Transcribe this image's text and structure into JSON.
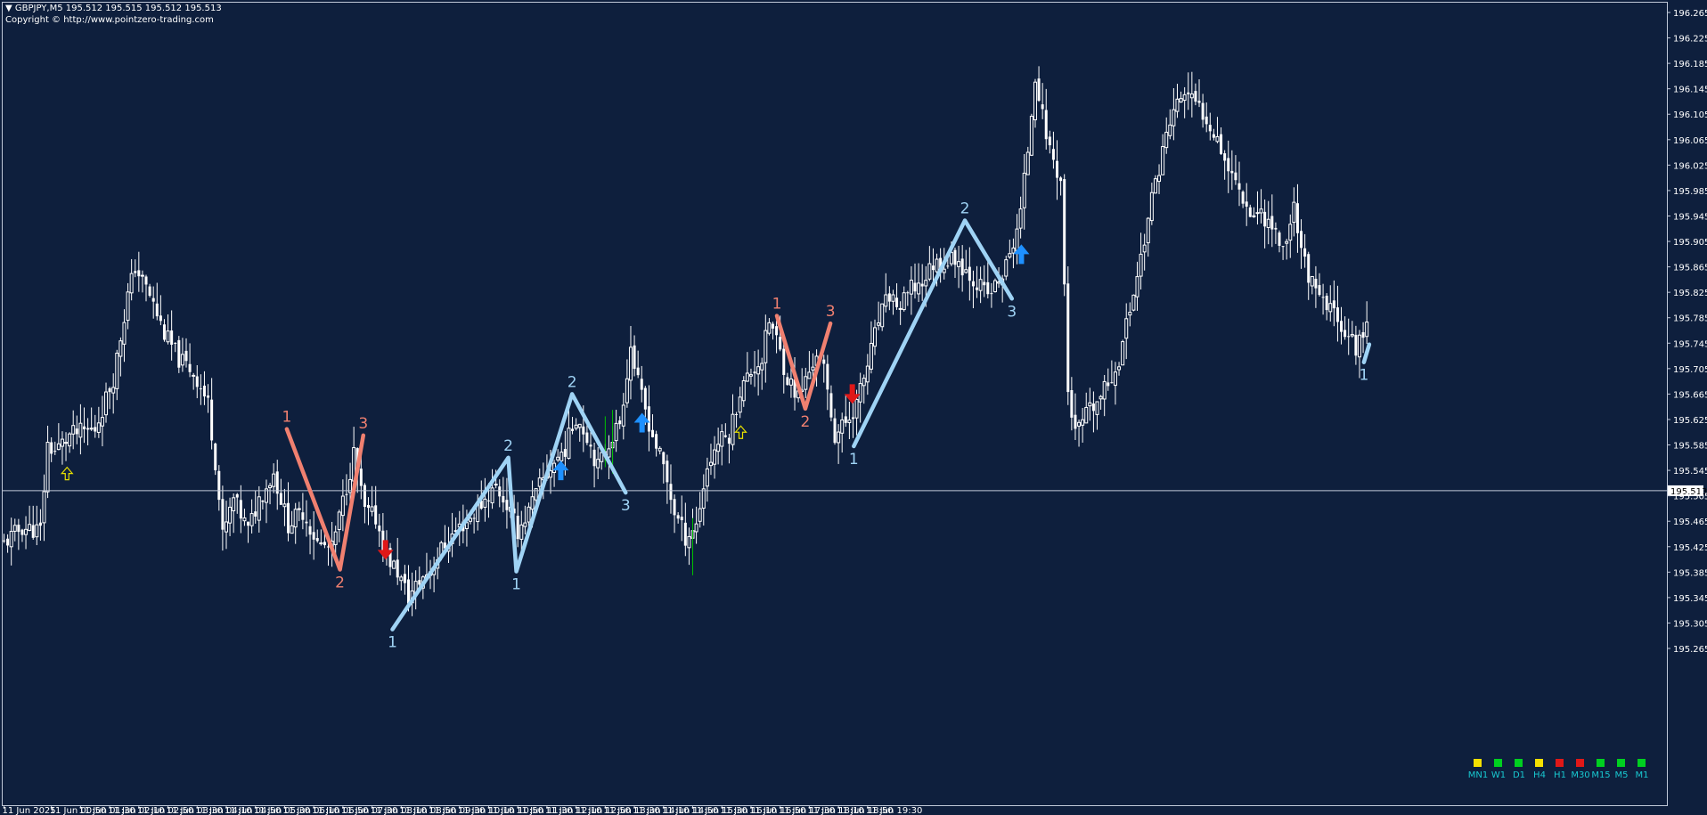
{
  "header": {
    "symbol_line": "GBPJPY,M5  195.512 195.515 195.512 195.513",
    "copyright": "Copyright © http://www.pointzero-trading.com"
  },
  "colors": {
    "background": "#0e1f3d",
    "frame": "#c0c8d8",
    "candle": "#ffffff",
    "bull_wave": "#9fd3f5",
    "bear_wave": "#f08070",
    "buy_arrow": "#1e90ff",
    "sell_arrow": "#e01818",
    "hollow_arrow": "#e8e000",
    "price_line": "#c0c8d8",
    "green_bar": "#00c000"
  },
  "price_line": {
    "value": 195.513,
    "label": "195.513"
  },
  "timeframe_panel": [
    {
      "label": "MN1",
      "color": "#f5e000"
    },
    {
      "label": "W1",
      "color": "#00d020"
    },
    {
      "label": "D1",
      "color": "#00d020"
    },
    {
      "label": "H4",
      "color": "#f5e000"
    },
    {
      "label": "H1",
      "color": "#e01818"
    },
    {
      "label": "M30",
      "color": "#e01818"
    },
    {
      "label": "M15",
      "color": "#00d020"
    },
    {
      "label": "M5",
      "color": "#00d020"
    },
    {
      "label": "M1",
      "color": "#00d020"
    }
  ],
  "chart_data": {
    "type": "candlestick",
    "symbol": "GBPJPY",
    "timeframe": "M5",
    "ylim": [
      195.25,
      196.285
    ],
    "y_ticks": [
      "196.265",
      "196.225",
      "196.185",
      "196.145",
      "196.105",
      "196.065",
      "196.025",
      "195.985",
      "195.945",
      "195.905",
      "195.865",
      "195.825",
      "195.785",
      "195.745",
      "195.705",
      "195.665",
      "195.625",
      "195.585",
      "195.545",
      "195.505",
      "195.465",
      "195.425",
      "195.385",
      "195.345",
      "195.305",
      "195.265"
    ],
    "x_ticks": [
      "11 Jun 2025",
      "11 Jun 00:50",
      "11 Jun 01:30",
      "11 Jun 02:10",
      "11 Jun 02:50",
      "11 Jun 03:30",
      "11 Jun 04:10",
      "11 Jun 04:50",
      "11 Jun 05:30",
      "11 Jun 06:10",
      "11 Jun 06:50",
      "11 Jun 07:30",
      "11 Jun 08:10",
      "11 Jun 08:50",
      "11 Jun 09:30",
      "11 Jun 10:10",
      "11 Jun 10:50",
      "11 Jun 11:30",
      "11 Jun 12:10",
      "11 Jun 12:50",
      "11 Jun 13:30",
      "11 Jun 14:10",
      "11 Jun 14:50",
      "11 Jun 15:30",
      "11 Jun 16:10",
      "11 Jun 16:50",
      "11 Jun 17:30",
      "11 Jun 18:10",
      "11 Jun 18:50",
      "11 Jun 19:30"
    ],
    "close_path": [
      [
        0,
        195.43
      ],
      [
        5,
        195.455
      ],
      [
        10,
        195.45
      ],
      [
        12,
        195.585
      ],
      [
        14,
        195.575
      ],
      [
        18,
        195.6
      ],
      [
        25,
        195.61
      ],
      [
        30,
        195.69
      ],
      [
        34,
        195.82
      ],
      [
        36,
        195.865
      ],
      [
        40,
        195.82
      ],
      [
        44,
        195.76
      ],
      [
        48,
        195.72
      ],
      [
        52,
        195.7
      ],
      [
        56,
        195.65
      ],
      [
        58,
        195.56
      ],
      [
        60,
        195.44
      ],
      [
        63,
        195.5
      ],
      [
        67,
        195.45
      ],
      [
        70,
        195.5
      ],
      [
        74,
        195.54
      ],
      [
        78,
        195.46
      ],
      [
        82,
        195.48
      ],
      [
        86,
        195.43
      ],
      [
        90,
        195.42
      ],
      [
        94,
        195.52
      ],
      [
        96,
        195.57
      ],
      [
        99,
        195.48
      ],
      [
        102,
        195.47
      ],
      [
        105,
        195.41
      ],
      [
        108,
        195.385
      ],
      [
        111,
        195.345
      ],
      [
        114,
        195.37
      ],
      [
        117,
        195.39
      ],
      [
        120,
        195.42
      ],
      [
        124,
        195.45
      ],
      [
        128,
        195.47
      ],
      [
        132,
        195.5
      ],
      [
        135,
        195.52
      ],
      [
        138,
        195.49
      ],
      [
        141,
        195.45
      ],
      [
        144,
        195.48
      ],
      [
        147,
        195.52
      ],
      [
        150,
        195.55
      ],
      [
        154,
        195.58
      ],
      [
        157,
        195.63
      ],
      [
        160,
        195.6
      ],
      [
        163,
        195.55
      ],
      [
        166,
        195.59
      ],
      [
        169,
        195.62
      ],
      [
        172,
        195.74
      ],
      [
        174,
        195.68
      ],
      [
        176,
        195.64
      ],
      [
        178,
        195.6
      ],
      [
        181,
        195.55
      ],
      [
        184,
        195.48
      ],
      [
        187,
        195.44
      ],
      [
        190,
        195.46
      ],
      [
        193,
        195.55
      ],
      [
        196,
        195.59
      ],
      [
        199,
        195.6
      ],
      [
        202,
        195.67
      ],
      [
        205,
        195.7
      ],
      [
        208,
        195.72
      ],
      [
        210,
        195.78
      ],
      [
        212,
        195.75
      ],
      [
        215,
        195.69
      ],
      [
        218,
        195.66
      ],
      [
        221,
        195.7
      ],
      [
        223,
        195.73
      ],
      [
        225,
        195.7
      ],
      [
        228,
        195.6
      ],
      [
        231,
        195.62
      ],
      [
        234,
        195.65
      ],
      [
        237,
        195.71
      ],
      [
        240,
        195.78
      ],
      [
        243,
        195.82
      ],
      [
        246,
        195.8
      ],
      [
        249,
        195.83
      ],
      [
        252,
        195.84
      ],
      [
        255,
        195.87
      ],
      [
        258,
        195.87
      ],
      [
        261,
        195.88
      ],
      [
        264,
        195.86
      ],
      [
        267,
        195.84
      ],
      [
        270,
        195.82
      ],
      [
        273,
        195.84
      ],
      [
        276,
        195.88
      ],
      [
        279,
        195.95
      ],
      [
        281,
        196.05
      ],
      [
        283,
        196.17
      ],
      [
        285,
        196.1
      ],
      [
        287,
        196.05
      ],
      [
        290,
        196
      ],
      [
        292,
        195.67
      ],
      [
        294,
        195.6
      ],
      [
        297,
        195.63
      ],
      [
        300,
        195.65
      ],
      [
        303,
        195.68
      ],
      [
        306,
        195.72
      ],
      [
        309,
        195.8
      ],
      [
        312,
        195.88
      ],
      [
        315,
        195.97
      ],
      [
        318,
        196.05
      ],
      [
        321,
        196.11
      ],
      [
        324,
        196.14
      ],
      [
        327,
        196.12
      ],
      [
        330,
        196.1
      ],
      [
        333,
        196.07
      ],
      [
        336,
        196.02
      ],
      [
        339,
        195.99
      ],
      [
        342,
        195.95
      ],
      [
        345,
        195.95
      ],
      [
        348,
        195.93
      ],
      [
        351,
        195.89
      ],
      [
        354,
        195.96
      ],
      [
        357,
        195.87
      ],
      [
        360,
        195.82
      ],
      [
        363,
        195.8
      ],
      [
        366,
        195.79
      ],
      [
        369,
        195.75
      ],
      [
        371,
        195.74
      ],
      [
        374,
        195.77
      ]
    ],
    "waves": [
      {
        "direction": "bear",
        "points": [
          {
            "bar": 77.6,
            "price": 195.61,
            "label": "1"
          },
          {
            "bar": 92.2,
            "price": 195.389,
            "label": "2"
          },
          {
            "bar": 98.6,
            "price": 195.6,
            "label": "3"
          }
        ]
      },
      {
        "direction": "bull",
        "points": [
          {
            "bar": 106.6,
            "price": 195.295,
            "label": "1"
          },
          {
            "bar": 138.4,
            "price": 195.565,
            "label": "2"
          },
          {
            "bar": 140.6,
            "price": 195.386,
            "label": "1"
          },
          {
            "bar": 155.9,
            "price": 195.665,
            "label": "2"
          },
          {
            "bar": 170.6,
            "price": 195.51,
            "label": "3"
          }
        ]
      },
      {
        "direction": "bear",
        "points": [
          {
            "bar": 212.1,
            "price": 195.788,
            "label": "1"
          },
          {
            "bar": 219.9,
            "price": 195.642,
            "label": "2"
          },
          {
            "bar": 226.8,
            "price": 195.776,
            "label": "3"
          }
        ]
      },
      {
        "direction": "bull",
        "points": [
          {
            "bar": 233.2,
            "price": 195.583,
            "label": "1"
          },
          {
            "bar": 263.7,
            "price": 195.938,
            "label": "2"
          },
          {
            "bar": 276.6,
            "price": 195.815,
            "label": "3"
          }
        ]
      },
      {
        "direction": "bull",
        "points": [
          {
            "bar": 373.2,
            "price": 195.715,
            "label": "1"
          }
        ]
      }
    ],
    "signals": [
      {
        "type": "hollow-up",
        "bar": 17.3,
        "price": 195.54
      },
      {
        "type": "sell",
        "bar": 104.7,
        "price": 195.42
      },
      {
        "type": "buy",
        "bar": 152.8,
        "price": 195.545
      },
      {
        "type": "buy",
        "bar": 175.1,
        "price": 195.62
      },
      {
        "type": "hollow-up",
        "bar": 202.2,
        "price": 195.605
      },
      {
        "type": "sell",
        "bar": 232.8,
        "price": 195.665
      },
      {
        "type": "buy",
        "bar": 279.2,
        "price": 195.885
      }
    ]
  }
}
